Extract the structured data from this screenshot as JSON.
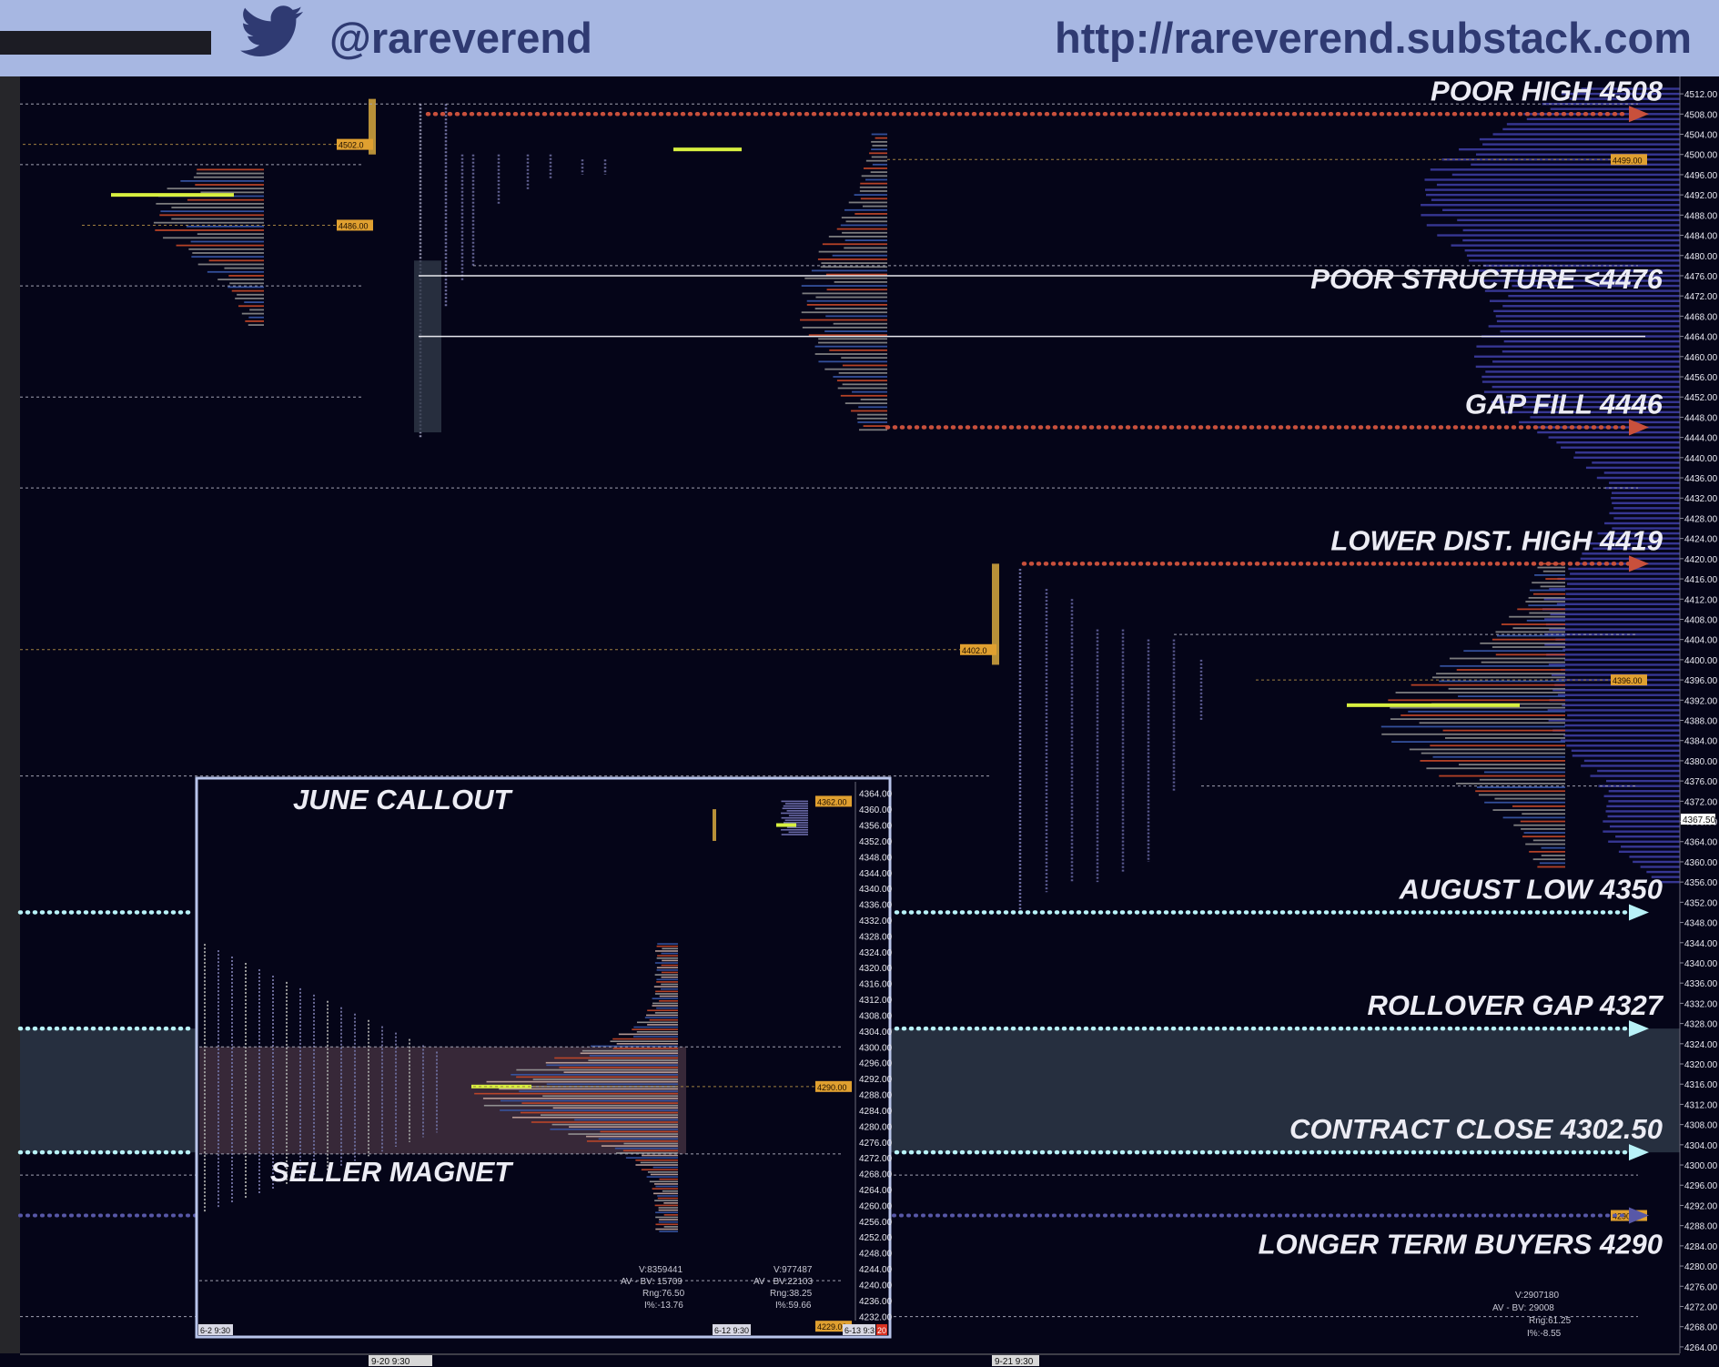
{
  "header": {
    "handle": "@rareverend",
    "url": "http://rareverend.substack.com"
  },
  "colors": {
    "background": "#050518",
    "header": "#a7b7e2",
    "red_level": "#c8503c",
    "cyan_level": "#b8f2f8",
    "purple_level": "#5858a8",
    "volume_profile": "#3c3ca0",
    "poc": "#d8f040",
    "price_tag": "#e0a030"
  },
  "chart_data": {
    "type": "bar",
    "title": "",
    "ylabel": "",
    "ylim": [
      4262,
      4514
    ],
    "y_ticks": [
      "4512.00",
      "4508.00",
      "4504.00",
      "4500.00",
      "4496.00",
      "4492.00",
      "4488.00",
      "4484.00",
      "4480.00",
      "4476.00",
      "4472.00",
      "4468.00",
      "4464.00",
      "4460.00",
      "4456.00",
      "4452.00",
      "4448.00",
      "4444.00",
      "4440.00",
      "4436.00",
      "4432.00",
      "4428.00",
      "4424.00",
      "4420.00",
      "4416.00",
      "4412.00",
      "4408.00",
      "4404.00",
      "4400.00",
      "4396.00",
      "4392.00",
      "4388.00",
      "4384.00",
      "4380.00",
      "4376.00",
      "4372.00",
      "4368.00",
      "4364.00",
      "4360.00",
      "4356.00",
      "4352.00",
      "4348.00",
      "4344.00",
      "4340.00",
      "4336.00",
      "4332.00",
      "4328.00",
      "4324.00",
      "4320.00",
      "4316.00",
      "4312.00",
      "4308.00",
      "4304.00",
      "4300.00",
      "4296.00",
      "4292.00",
      "4288.00",
      "4284.00",
      "4280.00",
      "4276.00",
      "4272.00",
      "4268.00",
      "4264.00"
    ],
    "last_price": "4367.50",
    "x_labels": [
      "9-20 9:30",
      "9-21 9:30"
    ],
    "price_tags": [
      "4502.0",
      "4486.00",
      "4499.00",
      "4402.0",
      "4396.00",
      "4290.00"
    ],
    "levels": [
      {
        "label": "POOR HIGH 4508",
        "price": 4508,
        "style": "red-dotted"
      },
      {
        "label": "POOR STRUCTURE <4476",
        "price": 4476,
        "style": "white-line"
      },
      {
        "label": "GAP FILL 4446",
        "price": 4446,
        "style": "red-dotted"
      },
      {
        "label": "LOWER DIST. HIGH 4419",
        "price": 4419,
        "style": "red-dotted"
      },
      {
        "label": "AUGUST LOW 4350",
        "price": 4350,
        "style": "cyan-dotted"
      },
      {
        "label": "ROLLOVER GAP 4327",
        "price": 4327,
        "style": "cyan-dotted"
      },
      {
        "label": "CONTRACT CLOSE 4302.50",
        "price": 4302.5,
        "style": "cyan-dotted"
      },
      {
        "label": "LONGER TERM BUYERS 4290",
        "price": 4290,
        "style": "purple-dotted"
      }
    ],
    "stats": {
      "volume": "V:2907180",
      "avg_bv": "AV - BV: 29008",
      "range": "Rng:61.25",
      "pct": "I%:-8.55"
    },
    "inset": {
      "title": "JUNE CALLOUT",
      "label": "SELLER MAGNET",
      "ylim": [
        4230,
        4366
      ],
      "y_ticks": [
        "4364.00",
        "4360.00",
        "4356.00",
        "4352.00",
        "4348.00",
        "4344.00",
        "4340.00",
        "4336.00",
        "4332.00",
        "4328.00",
        "4324.00",
        "4320.00",
        "4316.00",
        "4312.00",
        "4308.00",
        "4304.00",
        "4300.00",
        "4296.00",
        "4292.00",
        "4288.00",
        "4284.00",
        "4280.00",
        "4276.00",
        "4272.00",
        "4268.00",
        "4264.00",
        "4260.00",
        "4256.00",
        "4252.00",
        "4248.00",
        "4244.00",
        "4240.00",
        "4236.00",
        "4232.00"
      ],
      "price_tags": [
        "4362.00",
        "4290.00",
        "4229.00"
      ],
      "x_labels": [
        "6-2 9:30",
        "6-12 9:30",
        "6-13 9:3"
      ],
      "last_tag": "20",
      "stats_a": {
        "volume": "V:8359441",
        "avg_bv": "AV - BV: 15709",
        "range": "Rng:76.50",
        "pct": "I%:-13.76"
      },
      "stats_b": {
        "volume": "V:977487",
        "avg_bv": "AV - BV:22103",
        "range": "Rng:38.25",
        "pct": "I%:59.66"
      }
    }
  }
}
